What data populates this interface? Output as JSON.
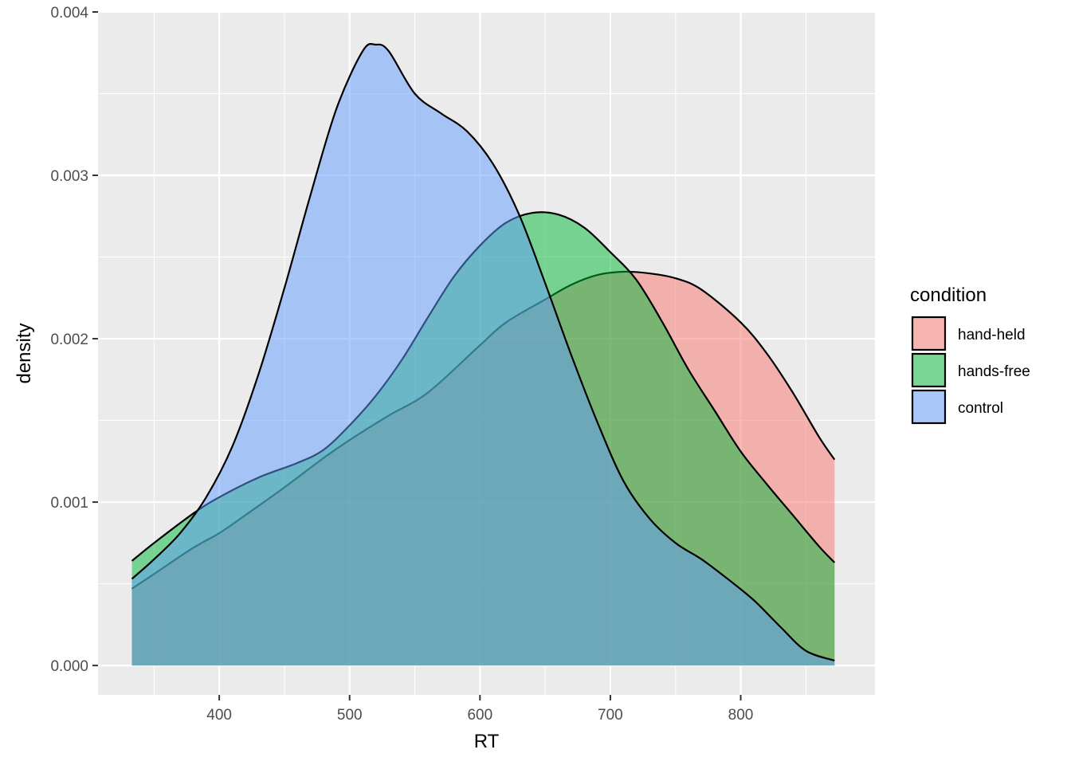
{
  "chart_data": {
    "type": "area",
    "xlabel": "RT",
    "ylabel": "density",
    "xlim": [
      307,
      903
    ],
    "ylim": [
      -0.00018,
      0.004
    ],
    "x_ticks": [
      400,
      500,
      600,
      700,
      800
    ],
    "y_ticks": [
      0.0,
      0.001,
      0.002,
      0.003,
      0.004
    ],
    "x_tick_labels": [
      "400",
      "500",
      "600",
      "700",
      "800"
    ],
    "y_tick_labels": [
      "0.000",
      "0.001",
      "0.002",
      "0.003",
      "0.004"
    ],
    "grid": true,
    "legend": {
      "title": "condition",
      "position": "right"
    },
    "series": [
      {
        "name": "hand-held",
        "color": "#F8766D",
        "points": [
          [
            333,
            0.00047
          ],
          [
            350,
            0.00056
          ],
          [
            380,
            0.00072
          ],
          [
            400,
            0.00081
          ],
          [
            420,
            0.00092
          ],
          [
            450,
            0.00109
          ],
          [
            480,
            0.00127
          ],
          [
            500,
            0.00138
          ],
          [
            530,
            0.00153
          ],
          [
            560,
            0.00167
          ],
          [
            600,
            0.00196
          ],
          [
            620,
            0.0021
          ],
          [
            650,
            0.00224
          ],
          [
            670,
            0.00233
          ],
          [
            690,
            0.00239
          ],
          [
            710,
            0.00241
          ],
          [
            730,
            0.0024
          ],
          [
            750,
            0.00237
          ],
          [
            770,
            0.0023
          ],
          [
            800,
            0.0021
          ],
          [
            820,
            0.00191
          ],
          [
            840,
            0.00167
          ],
          [
            860,
            0.0014
          ],
          [
            872,
            0.00126
          ]
        ]
      },
      {
        "name": "hands-free",
        "color": "#00BA38",
        "points": [
          [
            333,
            0.00064
          ],
          [
            350,
            0.00075
          ],
          [
            380,
            0.00093
          ],
          [
            400,
            0.00103
          ],
          [
            430,
            0.00115
          ],
          [
            460,
            0.00124
          ],
          [
            480,
            0.00132
          ],
          [
            500,
            0.00147
          ],
          [
            520,
            0.00165
          ],
          [
            540,
            0.00187
          ],
          [
            560,
            0.00213
          ],
          [
            580,
            0.00238
          ],
          [
            600,
            0.00257
          ],
          [
            620,
            0.00271
          ],
          [
            640,
            0.00277
          ],
          [
            660,
            0.00276
          ],
          [
            680,
            0.00268
          ],
          [
            700,
            0.00253
          ],
          [
            720,
            0.00236
          ],
          [
            740,
            0.0021
          ],
          [
            760,
            0.00181
          ],
          [
            780,
            0.00156
          ],
          [
            800,
            0.00131
          ],
          [
            820,
            0.00111
          ],
          [
            840,
            0.00092
          ],
          [
            860,
            0.00073
          ],
          [
            872,
            0.00063
          ]
        ]
      },
      {
        "name": "control",
        "color": "#619CFF",
        "points": [
          [
            333,
            0.00053
          ],
          [
            350,
            0.00065
          ],
          [
            370,
            0.00081
          ],
          [
            390,
            0.00103
          ],
          [
            410,
            0.00134
          ],
          [
            430,
            0.00178
          ],
          [
            450,
            0.00231
          ],
          [
            470,
            0.00288
          ],
          [
            490,
            0.00341
          ],
          [
            510,
            0.00376
          ],
          [
            520,
            0.0038
          ],
          [
            530,
            0.00376
          ],
          [
            550,
            0.0035
          ],
          [
            570,
            0.00338
          ],
          [
            590,
            0.00327
          ],
          [
            610,
            0.00307
          ],
          [
            630,
            0.00276
          ],
          [
            650,
            0.00234
          ],
          [
            670,
            0.0019
          ],
          [
            690,
            0.00149
          ],
          [
            710,
            0.00113
          ],
          [
            730,
            0.0009
          ],
          [
            750,
            0.00075
          ],
          [
            770,
            0.00065
          ],
          [
            790,
            0.00053
          ],
          [
            810,
            0.0004
          ],
          [
            830,
            0.00024
          ],
          [
            850,
            9e-05
          ],
          [
            872,
            3e-05
          ]
        ]
      }
    ]
  }
}
